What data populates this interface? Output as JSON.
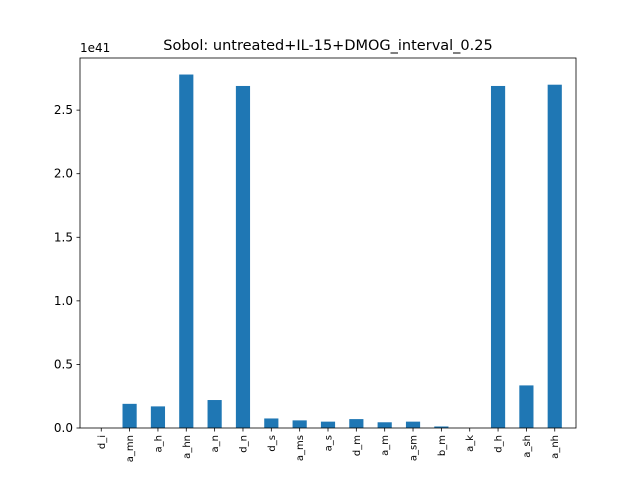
{
  "chart_data": {
    "type": "bar",
    "title": "Sobol: untreated+IL-15+DMOG_interval_0.25",
    "xlabel": "",
    "ylabel": "",
    "y_scale_factor": "1e41",
    "categories": [
      "d_i",
      "a_mn",
      "a_h",
      "a_hn",
      "a_n",
      "d_n",
      "d_s",
      "a_ms",
      "a_s",
      "d_m",
      "a_m",
      "a_sm",
      "b_m",
      "a_k",
      "d_h",
      "a_sh",
      "a_nh"
    ],
    "values": [
      0.0,
      0.19,
      0.17,
      2.78,
      0.22,
      2.69,
      0.075,
      0.06,
      0.05,
      0.07,
      0.045,
      0.05,
      0.012,
      0.0,
      2.69,
      0.335,
      2.7
    ],
    "ylim": [
      0,
      2.91
    ],
    "yticks": [
      "0.0",
      "0.5",
      "1.0",
      "1.5",
      "2.0",
      "2.5"
    ],
    "ytick_values": [
      0.0,
      0.5,
      1.0,
      1.5,
      2.0,
      2.5
    ],
    "bar_color": "#1f77b4",
    "grid": false,
    "legend": "none"
  }
}
